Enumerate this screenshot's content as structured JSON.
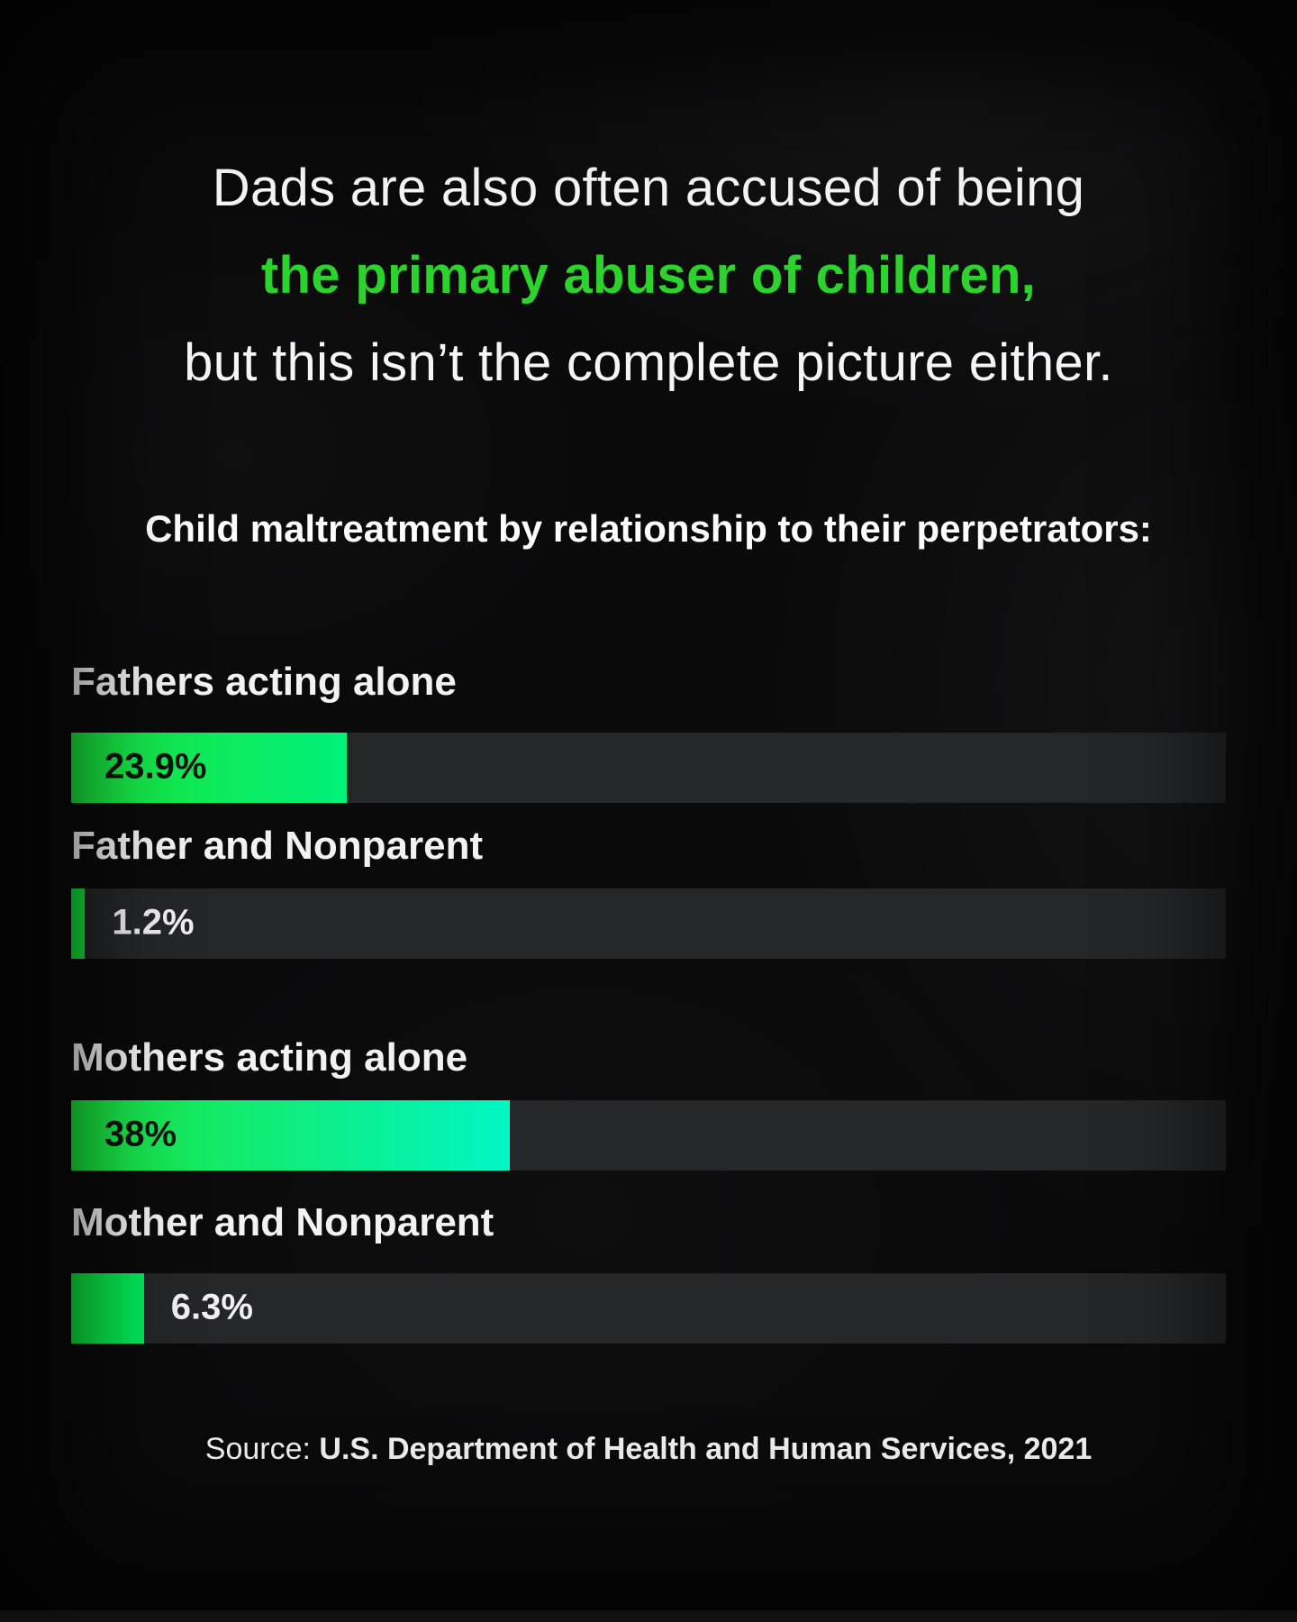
{
  "page": {
    "headline": {
      "line1": "Dads are also often accused of being",
      "line2": "the primary abuser of children,",
      "line3": "but this isn’t the complete picture either."
    },
    "source": {
      "prefix": "Source: ",
      "text": "U.S. Department of Health and Human Services, 2021"
    }
  },
  "colors": {
    "background": "#0a0a0b",
    "headline_white": "#f5f5f5",
    "headline_green": "#2cd32c",
    "bar_track": "#242628",
    "bar_label_white": "#f2f2f2",
    "value_text_dark": "#0b130c",
    "value_text_light": "#f0f0f0"
  },
  "chart_data": {
    "type": "bar",
    "orientation": "horizontal",
    "title": "Child maltreatment by relationship to their perpetrators:",
    "xlabel": "",
    "ylabel": "",
    "xlim": [
      0,
      100
    ],
    "unit": "%",
    "grid": false,
    "legend": false,
    "categories": [
      "Fathers acting alone",
      "Father and Nonparent",
      "Mothers acting alone",
      "Mother and Nonparent"
    ],
    "values": [
      23.9,
      1.2,
      38,
      6.3
    ],
    "bars": [
      {
        "label": "Fathers acting alone",
        "value": 23.9,
        "display": "23.9%",
        "value_position": "inside",
        "fill_from": "#1ce53a",
        "fill_to": "#00f07a"
      },
      {
        "label": "Father and Nonparent",
        "value": 1.2,
        "display": "1.2%",
        "value_position": "outside",
        "fill_from": "#12e335",
        "fill_to": "#12e335"
      },
      {
        "label": "Mothers acting alone",
        "value": 38,
        "display": "38%",
        "value_position": "inside",
        "fill_from": "#1ce53a",
        "fill_to": "#00f6c4"
      },
      {
        "label": "Mother and Nonparent",
        "value": 6.3,
        "display": "6.3%",
        "value_position": "outside",
        "fill_from": "#10e338",
        "fill_to": "#00ec60"
      }
    ],
    "source": "U.S. Department of Health and Human Services, 2021"
  }
}
